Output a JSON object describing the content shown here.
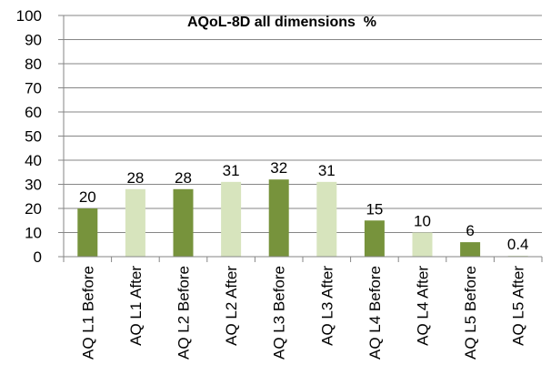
{
  "chart_data": {
    "type": "bar",
    "title": "AQoL-8D all dimensions  %",
    "xlabel": "",
    "ylabel": "",
    "ylim": [
      0,
      100
    ],
    "yticks": [
      0,
      10,
      20,
      30,
      40,
      50,
      60,
      70,
      80,
      90,
      100
    ],
    "categories": [
      "AQ L1 Before",
      "AQ L1 After",
      "AQ L2 Before",
      "AQ L2 After",
      "AQ L3 Before",
      "AQ L3 After",
      "AQ L4 Before",
      "AQ L4 After",
      "AQ L5 Before",
      "AQ L5 After"
    ],
    "values": [
      20,
      28,
      28,
      31,
      32,
      31,
      15,
      10,
      6,
      0.4
    ],
    "data_labels": [
      "20",
      "28",
      "28",
      "31",
      "32",
      "31",
      "15",
      "10",
      "6",
      "0.4"
    ],
    "bar_colors": [
      "#77933c",
      "#d7e4bd",
      "#77933c",
      "#d7e4bd",
      "#77933c",
      "#d7e4bd",
      "#77933c",
      "#d7e4bd",
      "#77933c",
      "#d7e4bd"
    ],
    "grid": true,
    "legend": "none"
  }
}
